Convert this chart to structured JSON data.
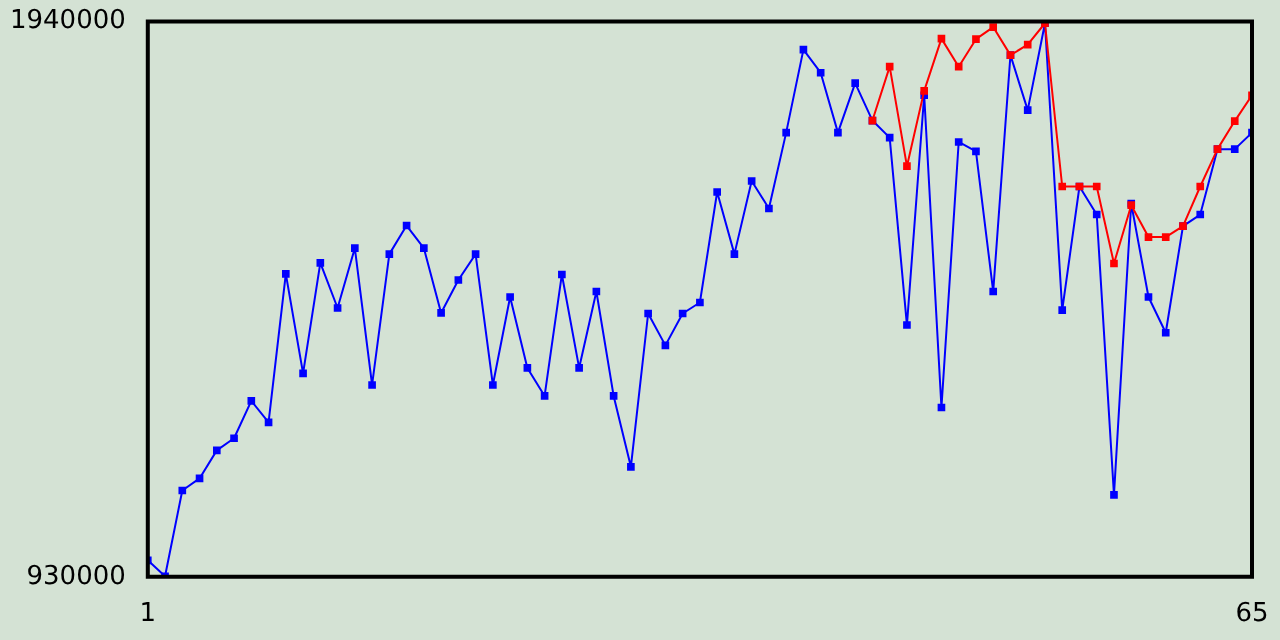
{
  "chart_data": {
    "type": "line",
    "marker": "square",
    "xlim": [
      1,
      65
    ],
    "xticks": [
      1,
      65
    ],
    "ylim": [
      930000,
      1940000
    ],
    "yticks": [
      930000,
      1940000
    ],
    "x": [
      1,
      2,
      3,
      4,
      5,
      6,
      7,
      8,
      9,
      10,
      11,
      12,
      13,
      14,
      15,
      16,
      17,
      18,
      19,
      20,
      21,
      22,
      23,
      24,
      25,
      26,
      27,
      28,
      29,
      30,
      31,
      32,
      33,
      34,
      35,
      36,
      37,
      38,
      39,
      40,
      41,
      42,
      43,
      44,
      45,
      46,
      47,
      48,
      49,
      50,
      51,
      52,
      53,
      54,
      55,
      56,
      57,
      58,
      59,
      60,
      61,
      62,
      63,
      64,
      65
    ],
    "series": [
      {
        "color": "#ff0000",
        "values": [
          null,
          null,
          null,
          null,
          null,
          null,
          null,
          null,
          null,
          null,
          null,
          null,
          null,
          null,
          null,
          null,
          null,
          null,
          null,
          null,
          null,
          null,
          null,
          null,
          null,
          null,
          null,
          null,
          null,
          null,
          null,
          null,
          null,
          null,
          null,
          null,
          null,
          null,
          null,
          null,
          null,
          null,
          1760000,
          1858000,
          1677000,
          1814000,
          1909000,
          1858000,
          1908000,
          1930000,
          1879000,
          1898000,
          1937000,
          1640000,
          1640000,
          1640000,
          1500000,
          1606000,
          1548000,
          1548000,
          1568000,
          1640000,
          1708000,
          1759000,
          1806000
        ]
      },
      {
        "color": "#0000ff",
        "values": [
          960000,
          931000,
          1087000,
          1109000,
          1160000,
          1182000,
          1250000,
          1211000,
          1481000,
          1300000,
          1501000,
          1419000,
          1528000,
          1279000,
          1517000,
          1569000,
          1528000,
          1410000,
          1470000,
          1517000,
          1279000,
          1439000,
          1310000,
          1259000,
          1480000,
          1310000,
          1449000,
          1259000,
          1130000,
          1409000,
          1351000,
          1409000,
          1429000,
          1630000,
          1517000,
          1650000,
          1600000,
          1738000,
          1889000,
          1847000,
          1738000,
          1828000,
          1760000,
          1729000,
          1388000,
          1806000,
          1238000,
          1721000,
          1704000,
          1449000,
          1879000,
          1779000,
          1937000,
          1415000,
          1640000,
          1589000,
          1079000,
          1609000,
          1439000,
          1374000,
          1568000,
          1589000,
          1708000,
          1708000,
          1738000
        ]
      }
    ]
  }
}
